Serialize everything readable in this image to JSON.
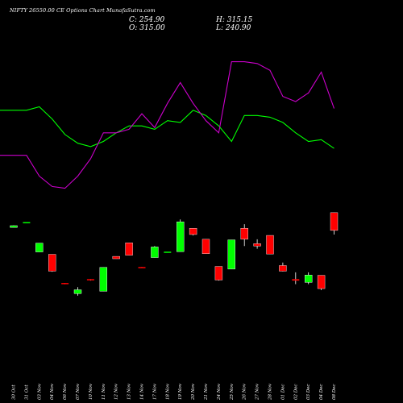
{
  "header": {
    "close": "C: 254.90",
    "open": "O: 315.00",
    "high": "H: 315.15",
    "low": "L: 240.90"
  },
  "chart_data": {
    "type": "candlestick",
    "title": "NIFTY 26550.00 CE Options  Chart MunafaSutra.com",
    "categories": [
      "30 Oct",
      "31 Oct",
      "03 Nov",
      "04 Nov",
      "06 Nov",
      "07 Nov",
      "10 Nov",
      "11 Nov",
      "12 Nov",
      "13 Nov",
      "14 Nov",
      "17 Nov",
      "18 Nov",
      "19 Nov",
      "20 Nov",
      "21 Nov",
      "24 Nov",
      "25 Nov",
      "26 Nov",
      "27 Nov",
      "28 Nov",
      "01 Dec",
      "02 Dec",
      "03 Dec",
      "04 Dec",
      "08 Dec"
    ],
    "candles": [
      {
        "open": 265,
        "high": 272,
        "low": 265,
        "close": 271,
        "dir": "up"
      },
      {
        "open": 283,
        "high": 283,
        "low": 283,
        "close": 283,
        "dir": "up"
      },
      {
        "open": 212,
        "high": 212,
        "low": 182,
        "close": 182,
        "dir": "up"
      },
      {
        "open": 174,
        "high": 174,
        "low": 115,
        "close": 117,
        "dir": "down"
      },
      {
        "open": 77,
        "high": 77,
        "low": 73,
        "close": 74,
        "dir": "down"
      },
      {
        "open": 41,
        "high": 63,
        "low": 34,
        "close": 54,
        "dir": "up"
      },
      {
        "open": 90,
        "high": 90,
        "low": 85,
        "close": 86,
        "dir": "down"
      },
      {
        "open": 49,
        "high": 130,
        "low": 49,
        "close": 130,
        "dir": "up"
      },
      {
        "open": 167,
        "high": 167,
        "low": 159,
        "close": 159,
        "dir": "down"
      },
      {
        "open": 213,
        "high": 213,
        "low": 171,
        "close": 171,
        "dir": "down"
      },
      {
        "open": 131,
        "high": 131,
        "low": 128,
        "close": 128,
        "dir": "down"
      },
      {
        "open": 163,
        "high": 202,
        "low": 163,
        "close": 199,
        "dir": "up"
      },
      {
        "open": 183,
        "high": 183,
        "low": 183,
        "close": 183,
        "dir": "up"
      },
      {
        "open": 183,
        "high": 292,
        "low": 183,
        "close": 284,
        "dir": "up"
      },
      {
        "open": 262,
        "high": 262,
        "low": 238,
        "close": 241,
        "dir": "down"
      },
      {
        "open": 225,
        "high": 225,
        "low": 176,
        "close": 176,
        "dir": "down"
      },
      {
        "open": 133,
        "high": 133,
        "low": 85,
        "close": 87,
        "dir": "down"
      },
      {
        "open": 223,
        "high": 223,
        "low": 124,
        "close": 124,
        "dir": "up"
      },
      {
        "open": 262,
        "high": 276,
        "low": 202,
        "close": 225,
        "dir": "down"
      },
      {
        "open": 210,
        "high": 225,
        "low": 193,
        "close": 202,
        "dir": "down"
      },
      {
        "open": 238,
        "high": 238,
        "low": 175,
        "close": 175,
        "dir": "down"
      },
      {
        "open": 136,
        "high": 146,
        "low": 116,
        "close": 117,
        "dir": "down"
      },
      {
        "open": 90,
        "high": 113,
        "low": 73,
        "close": 85,
        "dir": "down"
      },
      {
        "open": 79,
        "high": 113,
        "low": 73,
        "close": 104,
        "dir": "up"
      },
      {
        "open": 103,
        "high": 103,
        "low": 53,
        "close": 58,
        "dir": "down"
      },
      {
        "open": 315,
        "high": 315.15,
        "low": 240.9,
        "close": 254.9,
        "dir": "down"
      }
    ],
    "candle_ylim": [
      20,
      320
    ],
    "green_line": [
      98,
      98,
      100,
      93,
      84,
      79,
      77,
      80,
      85,
      89,
      89,
      87,
      92,
      91,
      98,
      95,
      89,
      80,
      95,
      95,
      94,
      91,
      85,
      80,
      81,
      76
    ],
    "magenta_line": [
      72,
      72,
      60,
      54,
      53,
      60,
      70,
      85,
      85,
      87,
      96,
      88,
      102,
      114,
      102,
      92,
      85,
      126,
      126,
      125,
      121,
      106,
      103,
      108,
      120,
      99
    ],
    "lines_ylim": [
      50,
      130
    ],
    "colors": {
      "up": "#00ff00",
      "down": "#ff0000",
      "green_line": "#00ff00",
      "magenta_line": "#cc00cc",
      "wick": "#ffffff",
      "background": "#000000",
      "text": "#ffffff"
    }
  }
}
